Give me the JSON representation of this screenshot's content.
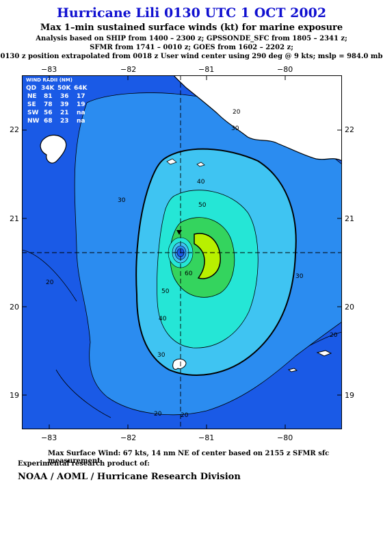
{
  "title": "Hurricane Lili 0130 UTC 1 OCT 2002",
  "subtitle": "Max 1–min sustained surface winds (kt) for marine exposure",
  "analysis_line1": "Analysis based on  SHIP from 1400 – 2300 z;  GPSSONDE_SFC from 1805 – 2341 z;",
  "analysis_line2": "SFMR from 1741 – 0010 z;  GOES from 1602 – 2202 z;",
  "position_line": "0130 z position extrapolated from 0018 z User wind center using 290 deg @ 9 kts; mslp = 984.0 mb",
  "axes": {
    "x_ticks": [
      "−83",
      "−82",
      "−81",
      "−80"
    ],
    "y_ticks": [
      "22",
      "21",
      "20",
      "19"
    ]
  },
  "wind_radii": {
    "heading": "WIND RADII (NM)",
    "header": [
      "QD",
      "34K",
      "50K",
      "64K"
    ],
    "rows": [
      [
        "NE",
        "81",
        "36",
        "17"
      ],
      [
        "SE",
        "78",
        "39",
        "19"
      ],
      [
        "SW",
        "56",
        "21",
        "na"
      ],
      [
        "NW",
        "68",
        "23",
        "na"
      ]
    ]
  },
  "contour_labels": [
    "20",
    "30",
    "40",
    "50",
    "60",
    "30",
    "40",
    "50",
    "30",
    "20",
    "20",
    "20",
    "30",
    "20"
  ],
  "footer": {
    "max_wind": "Max Surface Wind: 67 kts, 14 nm NE of center based on 2155 z SFMR sfc measurement",
    "product": "Experimental research product of:",
    "org": "NOAA / AOML / Hurricane Research Division"
  },
  "colors": {
    "title": "#1010d0",
    "wind_20": "#1a5ae6",
    "wind_30": "#2b8cf0",
    "wind_40": "#3fc4f2",
    "wind_50": "#25e6d6",
    "wind_60": "#34d45e",
    "wind_65": "#b8f000",
    "land": "#ffffff"
  }
}
